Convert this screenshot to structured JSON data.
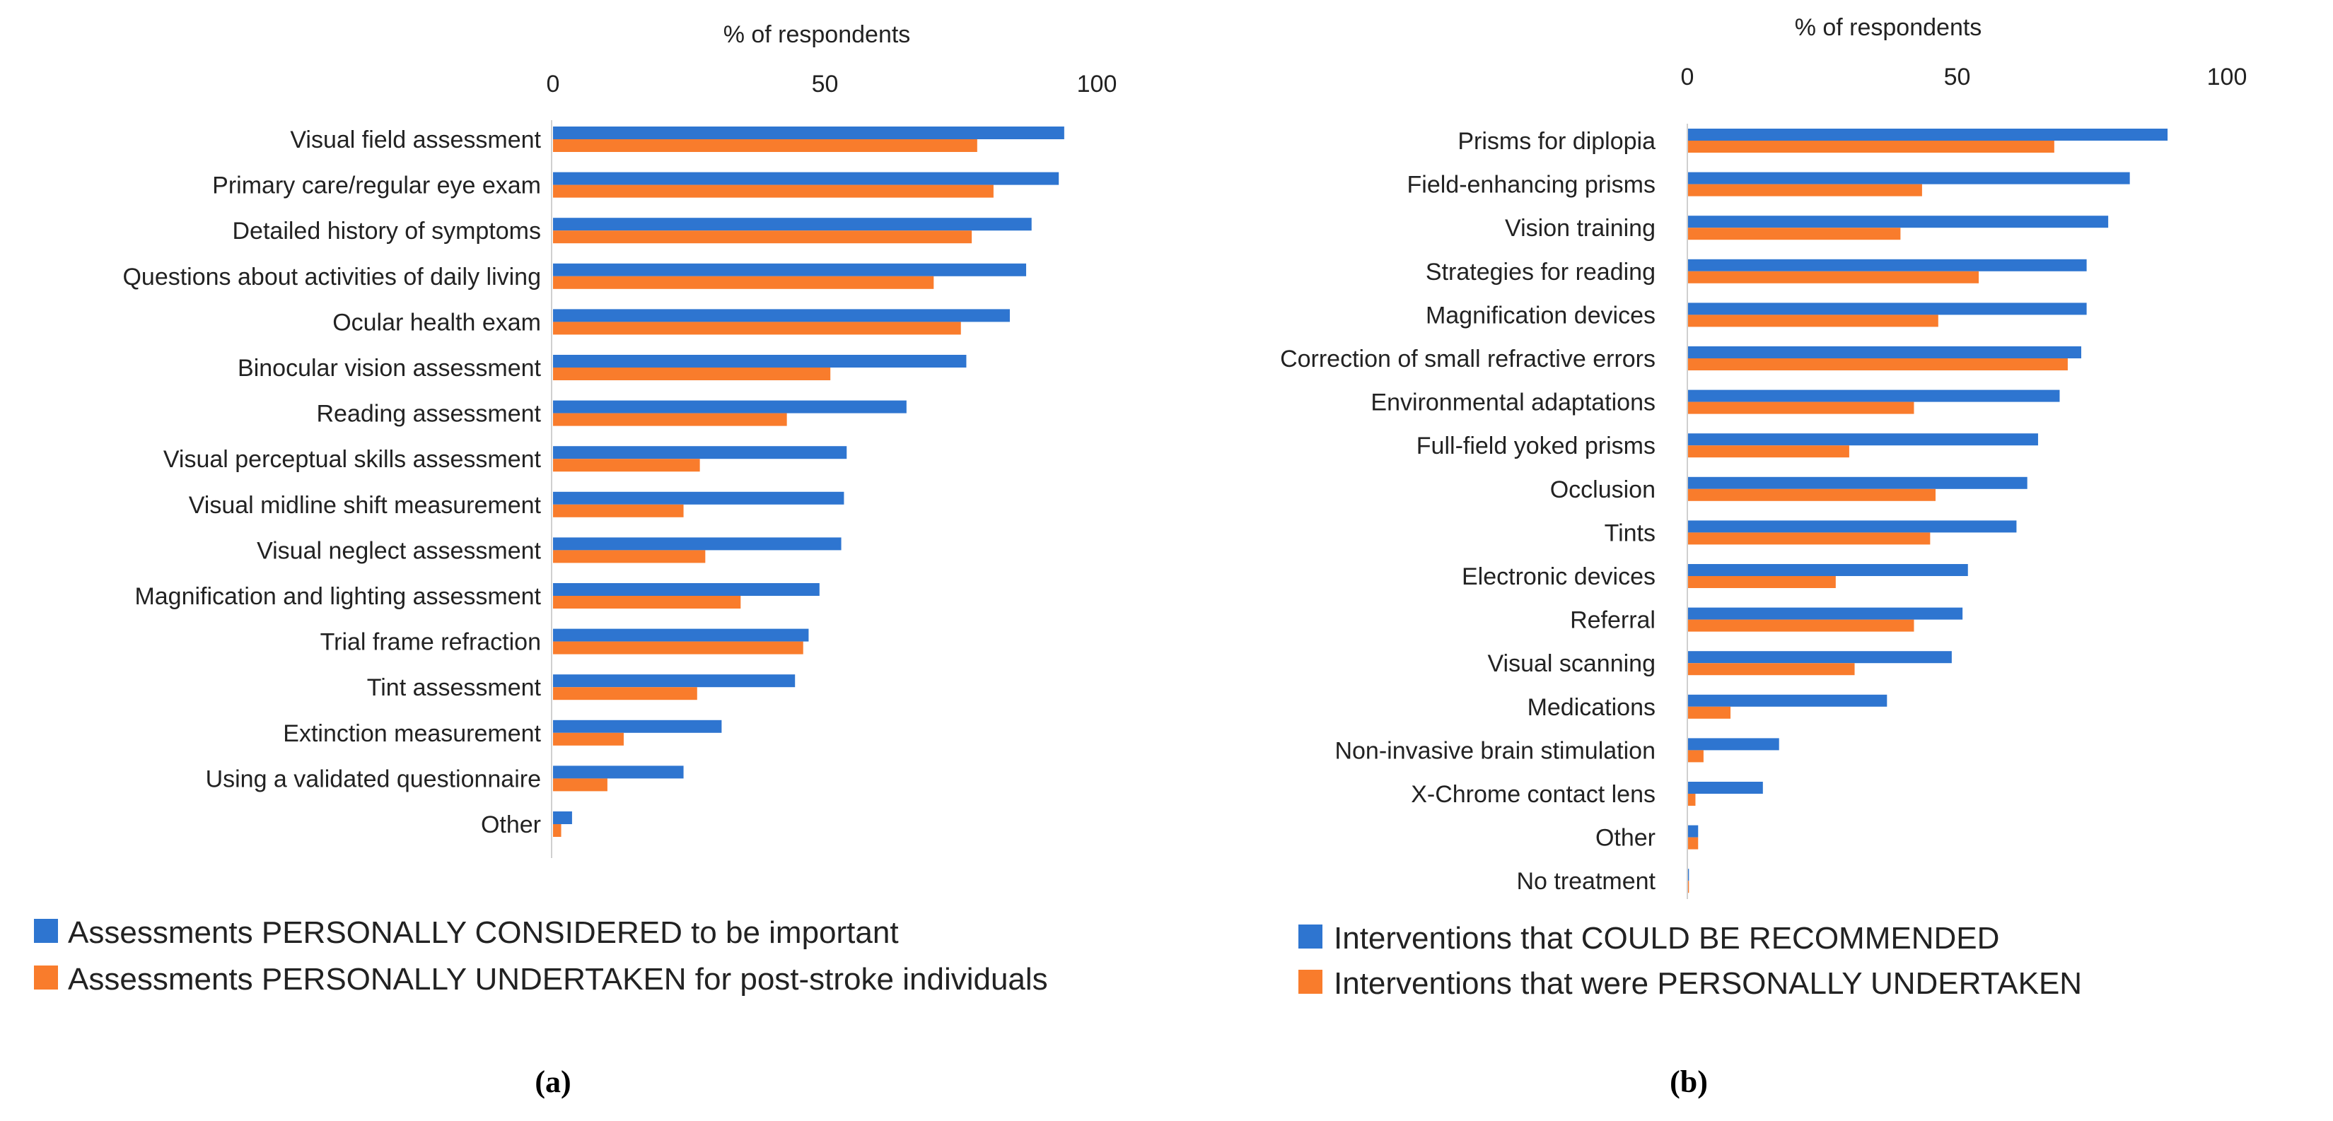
{
  "colors": {
    "series1": "#2E75D0",
    "series2": "#F97C2C"
  },
  "chart_data": [
    {
      "type": "bar",
      "orientation": "horizontal",
      "panel_label": "(a)",
      "xlabel": "% of respondents",
      "xlim": [
        0,
        100
      ],
      "xticks": [
        "0",
        "50",
        "100"
      ],
      "categories": [
        "Visual field assessment",
        "Primary care/regular eye exam",
        "Detailed history of symptoms",
        "Questions about activities of daily living",
        "Ocular health exam",
        "Binocular vision assessment",
        "Reading assessment",
        "Visual perceptual skills assessment",
        "Visual midline shift measurement",
        "Visual neglect assessment",
        "Magnification and lighting assessment",
        "Trial frame refraction",
        "Tint assessment",
        "Extinction measurement",
        "Using a validated questionnaire",
        "Other"
      ],
      "series": [
        {
          "name": "Assessments PERSONALLY CONSIDERED to be important",
          "values": [
            94,
            93,
            88,
            87,
            84,
            76,
            65,
            54,
            53.5,
            53,
            49,
            47,
            44.5,
            31,
            24,
            3.5
          ]
        },
        {
          "name": "Assessments PERSONALLY UNDERTAKEN for post-stroke individuals",
          "values": [
            78,
            81,
            77,
            70,
            75,
            51,
            43,
            27,
            24,
            28,
            34.5,
            46,
            26.5,
            13,
            10,
            1.5
          ]
        }
      ]
    },
    {
      "type": "bar",
      "orientation": "horizontal",
      "panel_label": "(b)",
      "xlabel": "% of respondents",
      "xlim": [
        0,
        100
      ],
      "xticks": [
        "0",
        "50",
        "100"
      ],
      "categories": [
        "Prisms for diplopia",
        "Field-enhancing prisms",
        "Vision training",
        "Strategies for reading",
        "Magnification devices",
        "Correction of small refractive errors",
        "Environmental adaptations",
        "Full-field yoked prisms",
        "Occlusion",
        "Tints",
        "Electronic devices",
        "Referral",
        "Visual scanning",
        "Medications",
        "Non-invasive brain stimulation",
        "X-Chrome contact lens",
        "Other",
        "No treatment"
      ],
      "series": [
        {
          "name": "Interventions that COULD BE RECOMMENDED",
          "values": [
            89,
            82,
            78,
            74,
            74,
            73,
            69,
            65,
            63,
            61,
            52,
            51,
            49,
            37,
            17,
            14,
            2,
            0.3
          ]
        },
        {
          "name": "Interventions that were PERSONALLY  UNDERTAKEN",
          "values": [
            68,
            43.5,
            39.5,
            54,
            46.5,
            70.5,
            42,
            30,
            46,
            45,
            27.5,
            42,
            31,
            8,
            3,
            1.5,
            2,
            0.3
          ]
        }
      ]
    }
  ]
}
